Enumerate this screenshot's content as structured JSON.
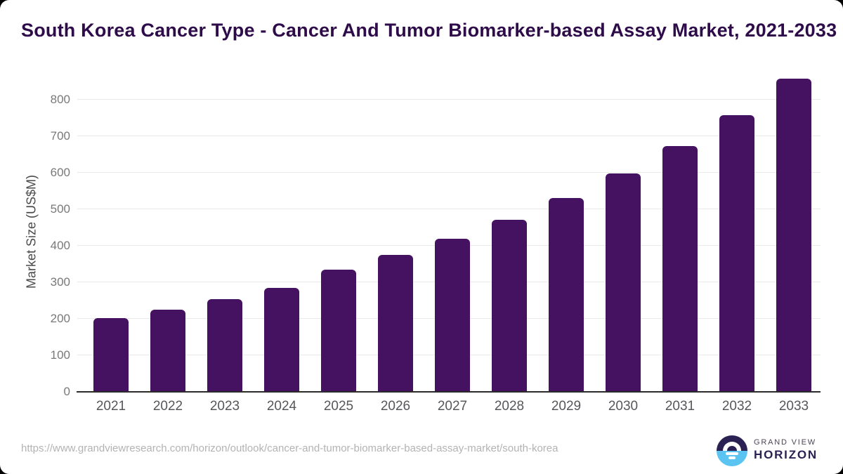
{
  "title": "South Korea Cancer Type - Cancer And Tumor Biomarker-based Assay Market, 2021-2033",
  "chart_data": {
    "type": "bar",
    "title": "South Korea Cancer Type - Cancer And Tumor Biomarker-based Assay Market, 2021-2033",
    "categories": [
      "2021",
      "2022",
      "2023",
      "2024",
      "2025",
      "2026",
      "2027",
      "2028",
      "2029",
      "2030",
      "2031",
      "2032",
      "2033"
    ],
    "values": [
      201,
      225,
      254,
      285,
      335,
      374,
      419,
      470,
      530,
      597,
      672,
      757,
      857
    ],
    "xlabel": "",
    "ylabel": "Market Size (US$M)",
    "yticks": [
      0,
      100,
      200,
      300,
      400,
      500,
      600,
      700,
      800
    ],
    "ylim": [
      0,
      880
    ],
    "grid": true,
    "legend": "none",
    "bar_color": "#451161"
  },
  "footer": {
    "source_url": "https://www.grandviewresearch.com/horizon/outlook/cancer-and-tumor-biomarker-based-assay-market/south-korea",
    "logo": {
      "line1": "GRAND VIEW",
      "line2": "HORIZON"
    }
  },
  "colors": {
    "bar": "#451161",
    "title_text": "#2e0b49",
    "axis_line": "#2b2b2b",
    "gridline": "#e9e9e9",
    "ytick_text": "#797979",
    "xtick_text": "#56575a",
    "url_text": "#b3b3b3",
    "logo_navy": "#2b2153",
    "logo_blue": "#5bc4f0",
    "card_bg": "#ffffff"
  }
}
